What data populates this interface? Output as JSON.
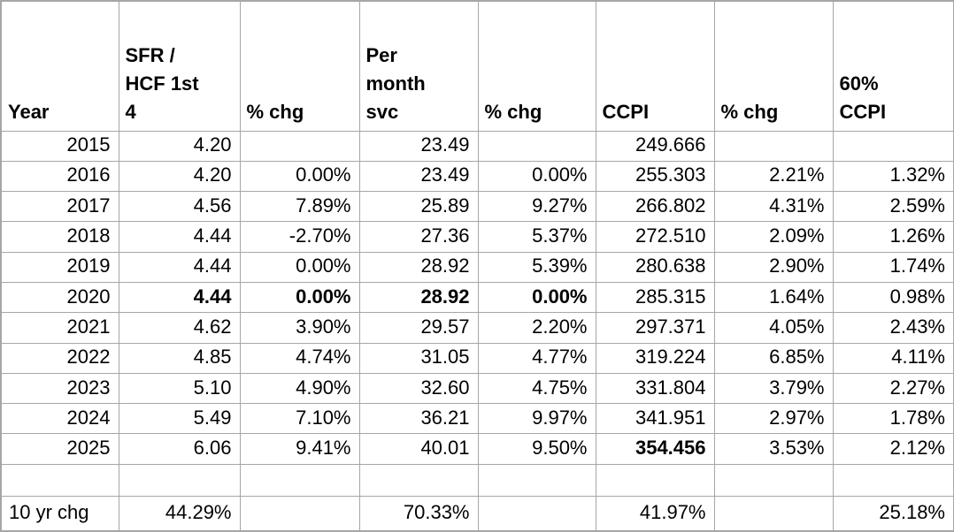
{
  "table": {
    "headers": [
      "Year",
      "SFR /\nHCF 1st\n4",
      "% chg",
      "Per\nmonth\nsvc",
      "% chg",
      "CCPI",
      "% chg",
      "60%\nCCPI"
    ],
    "rows": [
      {
        "cells": [
          "2015",
          "4.20",
          "",
          "23.49",
          "",
          "249.666",
          "",
          ""
        ],
        "bold": []
      },
      {
        "cells": [
          "2016",
          "4.20",
          "0.00%",
          "23.49",
          "0.00%",
          "255.303",
          "2.21%",
          "1.32%"
        ],
        "bold": []
      },
      {
        "cells": [
          "2017",
          "4.56",
          "7.89%",
          "25.89",
          "9.27%",
          "266.802",
          "4.31%",
          "2.59%"
        ],
        "bold": []
      },
      {
        "cells": [
          "2018",
          "4.44",
          "-2.70%",
          "27.36",
          "5.37%",
          "272.510",
          "2.09%",
          "1.26%"
        ],
        "bold": []
      },
      {
        "cells": [
          "2019",
          "4.44",
          "0.00%",
          "28.92",
          "5.39%",
          "280.638",
          "2.90%",
          "1.74%"
        ],
        "bold": []
      },
      {
        "cells": [
          "2020",
          "4.44",
          "0.00%",
          "28.92",
          "0.00%",
          "285.315",
          "1.64%",
          "0.98%"
        ],
        "bold": [
          1,
          2,
          3,
          4
        ]
      },
      {
        "cells": [
          "2021",
          "4.62",
          "3.90%",
          "29.57",
          "2.20%",
          "297.371",
          "4.05%",
          "2.43%"
        ],
        "bold": []
      },
      {
        "cells": [
          "2022",
          "4.85",
          "4.74%",
          "31.05",
          "4.77%",
          "319.224",
          "6.85%",
          "4.11%"
        ],
        "bold": []
      },
      {
        "cells": [
          "2023",
          "5.10",
          "4.90%",
          "32.60",
          "4.75%",
          "331.804",
          "3.79%",
          "2.27%"
        ],
        "bold": []
      },
      {
        "cells": [
          "2024",
          "5.49",
          "7.10%",
          "36.21",
          "9.97%",
          "341.951",
          "2.97%",
          "1.78%"
        ],
        "bold": []
      },
      {
        "cells": [
          "2025",
          "6.06",
          "9.41%",
          "40.01",
          "9.50%",
          "354.456",
          "3.53%",
          "2.12%"
        ],
        "bold": [
          5
        ]
      },
      {
        "cells": [
          "",
          "",
          "",
          "",
          "",
          "",
          "",
          ""
        ],
        "bold": [],
        "row_type": "spacer"
      },
      {
        "cells": [
          "10 yr chg",
          "44.29%",
          "",
          "70.33%",
          "",
          "41.97%",
          "",
          "25.18%"
        ],
        "bold": [],
        "row_type": "summary",
        "first_align": "left"
      }
    ],
    "grid_color": "#a6a6a6",
    "text_color": "#000000",
    "background_color": "#ffffff"
  }
}
